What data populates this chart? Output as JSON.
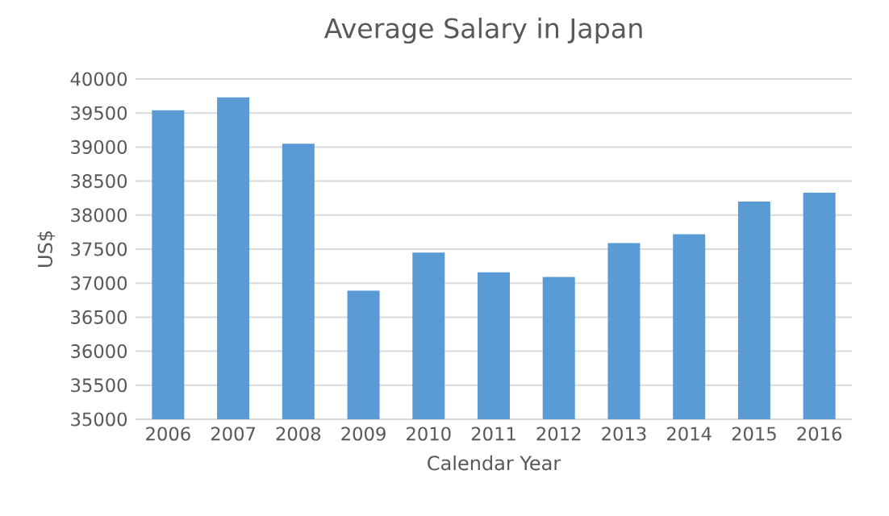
{
  "chart_data": {
    "type": "bar",
    "title": "Average Salary in Japan",
    "xlabel": "Calendar Year",
    "ylabel": "US$",
    "categories": [
      "2006",
      "2007",
      "2008",
      "2009",
      "2010",
      "2011",
      "2012",
      "2013",
      "2014",
      "2015",
      "2016"
    ],
    "values": [
      39540,
      39730,
      39050,
      36890,
      37450,
      37160,
      37090,
      37590,
      37720,
      38200,
      38330
    ],
    "color": "#5b9bd5",
    "ylim": [
      35000,
      40000
    ],
    "yticks": [
      35000,
      35500,
      36000,
      36500,
      37000,
      37500,
      38000,
      38500,
      39000,
      39500,
      40000
    ],
    "grid": "y"
  }
}
